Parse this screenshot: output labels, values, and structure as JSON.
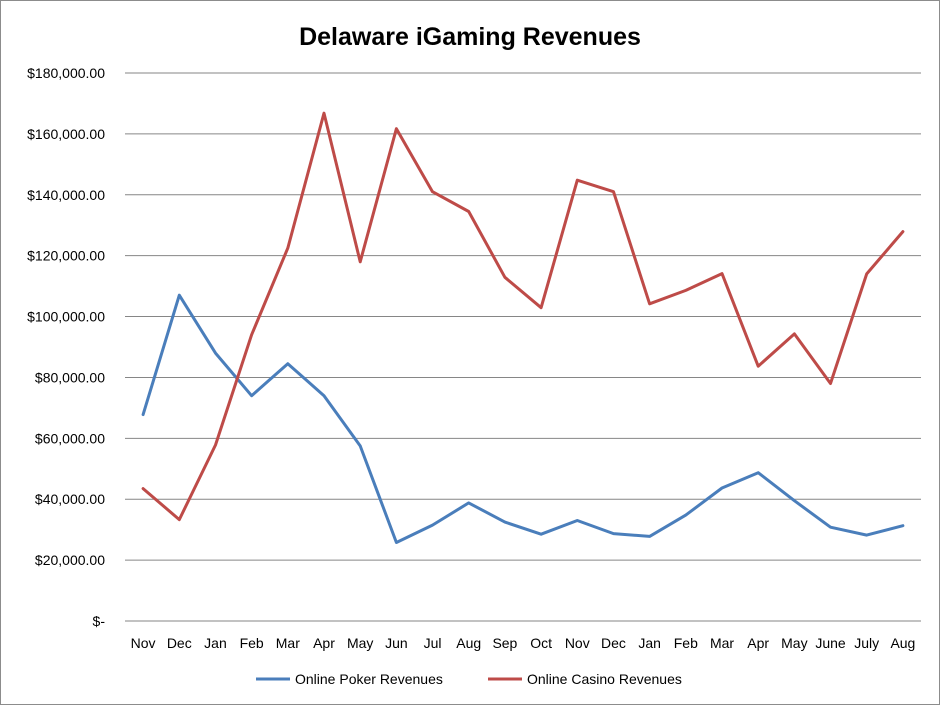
{
  "chart_data": {
    "type": "line",
    "title": "Delaware iGaming Revenues",
    "xlabel": "",
    "ylabel": "",
    "categories": [
      "Nov",
      "Dec",
      "Jan",
      "Feb",
      "Mar",
      "Apr",
      "May",
      "Jun",
      "Jul",
      "Aug",
      "Sep",
      "Oct",
      "Nov",
      "Dec",
      "Jan",
      "Feb",
      "Mar",
      "Apr",
      "May",
      "June",
      "July",
      "Aug"
    ],
    "ylim": [
      0,
      180000
    ],
    "yticks": [
      0,
      20000,
      40000,
      60000,
      80000,
      100000,
      120000,
      140000,
      160000,
      180000
    ],
    "ytick_labels": [
      "$-",
      "$20,000.00",
      "$40,000.00",
      "$60,000.00",
      "$80,000.00",
      "$100,000.00",
      "$120,000.00",
      "$140,000.00",
      "$160,000.00",
      "$180,000.00"
    ],
    "grid": true,
    "legend_position": "bottom",
    "series": [
      {
        "name": "Online Poker Revenues",
        "color": "#4a7ebb",
        "values": [
          67800,
          107000,
          88000,
          74000,
          84500,
          74000,
          57500,
          25800,
          31500,
          38800,
          32500,
          28500,
          33000,
          28700,
          27800,
          34800,
          43700,
          48700,
          39500,
          30800,
          28200,
          31300
        ]
      },
      {
        "name": "Online Casino Revenues",
        "color": "#be4b48",
        "values": [
          43500,
          33300,
          57800,
          94000,
          122500,
          166800,
          118000,
          161700,
          141000,
          134500,
          112900,
          102900,
          144800,
          141000,
          104200,
          108600,
          114100,
          83700,
          94300,
          78000,
          114000,
          127900
        ]
      }
    ]
  }
}
